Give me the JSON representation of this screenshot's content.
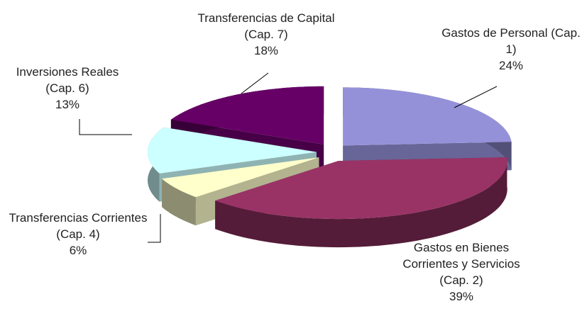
{
  "chart_data": {
    "type": "pie3d",
    "categories": [
      "Gastos de Personal (Cap. 1)",
      "Gastos en Bienes Corrientes y Servicios (Cap. 2)",
      "Transferencias Corrientes (Cap. 4)",
      "Inversiones Reales (Cap. 6)",
      "Transferencias de Capital (Cap. 7)"
    ],
    "values": [
      24,
      39,
      6,
      13,
      18
    ],
    "value_labels": [
      "24%",
      "39%",
      "6%",
      "13%",
      "18%"
    ],
    "colors": [
      "#9591d9",
      "#993366",
      "#ffffcc",
      "#ccffff",
      "#660066"
    ]
  }
}
